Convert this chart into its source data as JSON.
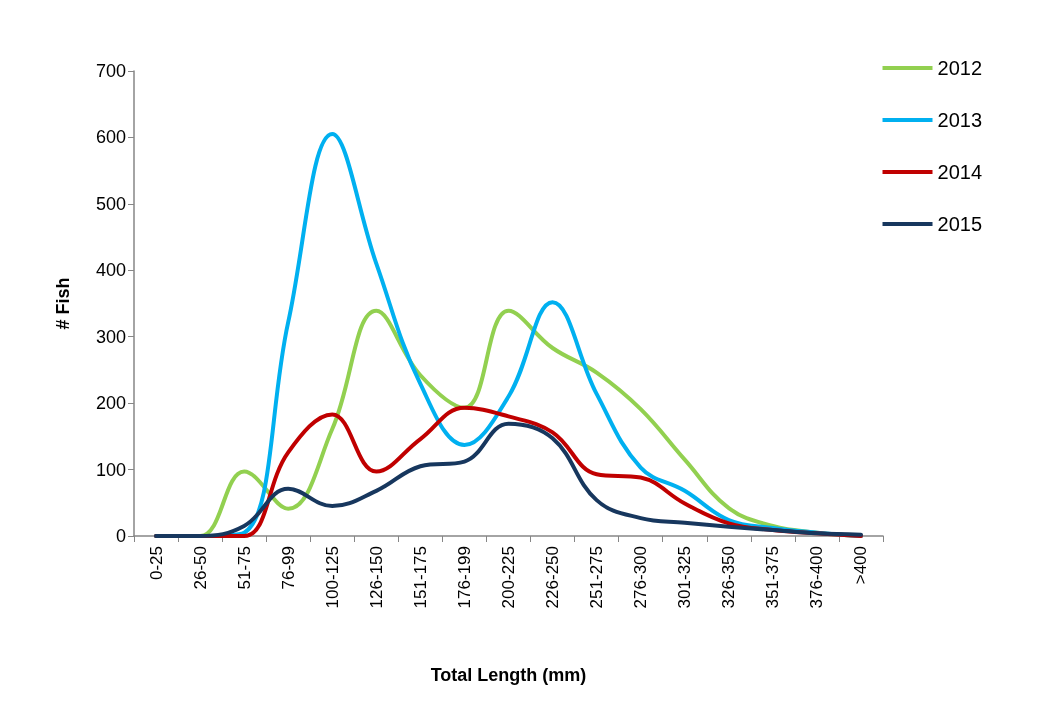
{
  "chart_data": {
    "type": "line",
    "xlabel": "Total Length (mm)",
    "ylabel": "# Fish",
    "categories": [
      "0-25",
      "26-50",
      "51-75",
      "76-99",
      "100-125",
      "126-150",
      "151-175",
      "176-199",
      "200-225",
      "226-250",
      "251-275",
      "276-300",
      "301-325",
      "326-350",
      "351-375",
      "376-400",
      ">400"
    ],
    "ylim": [
      0,
      700
    ],
    "yticks": [
      0,
      100,
      200,
      300,
      400,
      500,
      600,
      700
    ],
    "grid": false,
    "legend": "top right",
    "marker": "none",
    "line_style": "solid",
    "series": [
      {
        "name": "2012",
        "color": "#92d050",
        "values": [
          0,
          0,
          97,
          41,
          161,
          339,
          242,
          193,
          339,
          283,
          246,
          191,
          115,
          42,
          15,
          5,
          0
        ]
      },
      {
        "name": "2013",
        "color": "#00b0f0",
        "values": [
          0,
          0,
          5,
          322,
          605,
          410,
          229,
          137,
          210,
          352,
          214,
          103,
          68,
          24,
          12,
          5,
          0
        ]
      },
      {
        "name": "2014",
        "color": "#c00000",
        "values": [
          0,
          0,
          0,
          126,
          183,
          97,
          146,
          193,
          180,
          156,
          93,
          88,
          49,
          19,
          9,
          4,
          0
        ]
      },
      {
        "name": "2015",
        "color": "#17375e",
        "values": [
          0,
          0,
          15,
          71,
          45,
          68,
          105,
          112,
          169,
          147,
          54,
          27,
          20,
          14,
          9,
          4,
          2
        ]
      }
    ]
  }
}
